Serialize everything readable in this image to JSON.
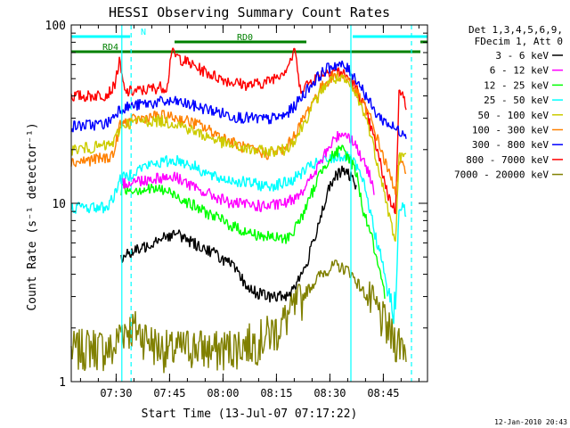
{
  "chart_data": {
    "type": "line",
    "title": "HESSI Observing Summary Count Rates",
    "xlabel": "Start Time (13-Jul-07 07:17:22)",
    "ylabel": "Count Rate (s⁻¹ detector⁻¹)",
    "x_unit": "minutes after 07:17:22",
    "xlim": [
      0,
      100
    ],
    "ylim": [
      1,
      100
    ],
    "yscale": "log",
    "grid": false,
    "legend_position": "right",
    "x_ticks": [
      {
        "t": 12.6,
        "label": "07:30"
      },
      {
        "t": 27.6,
        "label": "07:45"
      },
      {
        "t": 42.6,
        "label": "08:00"
      },
      {
        "t": 57.6,
        "label": "08:15"
      },
      {
        "t": 72.6,
        "label": "08:30"
      },
      {
        "t": 87.6,
        "label": "08:45"
      }
    ],
    "y_ticks": [
      {
        "v": 1,
        "label": "1"
      },
      {
        "v": 10,
        "label": "10"
      },
      {
        "v": 100,
        "label": "100"
      }
    ],
    "legend_header": [
      "Det 1,3,4,5,6,9,",
      "FDecim 1, Att 0"
    ],
    "series": [
      {
        "name": "3 - 6 keV",
        "color": "#000000",
        "x": [
          14,
          20,
          25,
          30,
          35,
          40,
          45,
          50,
          55,
          60,
          62,
          64,
          66,
          68,
          70,
          72,
          74,
          76,
          78,
          80
        ],
        "y": [
          5,
          5.6,
          6.5,
          6.7,
          5.9,
          5.3,
          4.5,
          3.3,
          3,
          3,
          3.3,
          3.8,
          4.5,
          6.2,
          8.5,
          11.5,
          14,
          15.2,
          14.5,
          12.5
        ]
      },
      {
        "name": "6 - 12 keV",
        "color": "#ff00ff",
        "x": [
          14,
          20,
          25,
          30,
          35,
          40,
          45,
          50,
          55,
          60,
          62,
          64,
          66,
          68,
          70,
          72,
          74,
          76,
          78,
          80,
          82,
          84,
          85
        ],
        "y": [
          13,
          13.5,
          14,
          14,
          12,
          11,
          10,
          9.8,
          9.6,
          10,
          10.5,
          11.5,
          12.5,
          14.5,
          17,
          20,
          23,
          25,
          24,
          21,
          17,
          14,
          12
        ]
      },
      {
        "name": "12 - 25 keV",
        "color": "#00ff00",
        "x": [
          14,
          20,
          25,
          30,
          35,
          40,
          45,
          50,
          55,
          60,
          62,
          64,
          66,
          68,
          70,
          72,
          74,
          76,
          78,
          80,
          82,
          84,
          86,
          88
        ],
        "y": [
          12,
          12,
          12,
          11,
          9.5,
          8.5,
          7.5,
          6.8,
          6.5,
          6.3,
          6.8,
          8,
          9.5,
          12,
          15,
          17.5,
          19,
          20,
          18,
          15,
          9,
          7,
          4.5,
          3
        ]
      },
      {
        "name": "25 - 50 keV",
        "color": "#00ffff",
        "x": [
          0,
          5,
          10,
          12,
          13.5,
          15,
          20,
          25,
          30,
          35,
          40,
          45,
          50,
          55,
          60,
          62,
          64,
          66,
          68,
          70,
          72,
          74,
          76,
          78,
          80,
          82,
          84,
          85,
          87,
          89,
          91,
          92,
          93,
          94
        ],
        "y": [
          9.5,
          9.5,
          9.5,
          11,
          13.5,
          14,
          16,
          17,
          17.5,
          16,
          14,
          13.5,
          13,
          12.5,
          13,
          13.5,
          14.5,
          15.5,
          16.5,
          17,
          17.5,
          18,
          18.5,
          18,
          16,
          13,
          9,
          7,
          5,
          3,
          2.5,
          9.5,
          9.5,
          9
        ]
      },
      {
        "name": "50 - 100 keV",
        "color": "#cccc00",
        "x": [
          0,
          5,
          10,
          12,
          13.5,
          15,
          20,
          25,
          30,
          35,
          40,
          45,
          50,
          55,
          60,
          62,
          64,
          66,
          68,
          70,
          72,
          74,
          76,
          78,
          80,
          82,
          84,
          85,
          87,
          89,
          91,
          92,
          93,
          94
        ],
        "y": [
          20,
          20.5,
          21,
          22,
          26,
          28,
          29,
          29,
          28,
          25,
          23,
          21,
          20,
          19.5,
          20,
          22,
          25,
          30,
          36,
          42,
          48,
          50,
          49,
          46,
          40,
          33,
          25,
          20,
          14,
          9,
          6,
          18,
          18.5,
          18
        ]
      },
      {
        "name": "100 - 300 keV",
        "color": "#ff8000",
        "x": [
          0,
          5,
          10,
          12,
          13.5,
          15,
          20,
          25,
          30,
          35,
          40,
          45,
          50,
          55,
          60,
          62,
          64,
          66,
          68,
          70,
          72,
          74,
          76,
          78,
          80,
          82,
          84,
          85,
          87,
          89,
          91,
          92,
          93,
          94
        ],
        "y": [
          17,
          17.5,
          18,
          19,
          27,
          28.5,
          30,
          31,
          30,
          28,
          25,
          22,
          20,
          19,
          20,
          23,
          27,
          32,
          38,
          44,
          49,
          52,
          52,
          49,
          42,
          36,
          30,
          26,
          20,
          15,
          12,
          16.5,
          16,
          16
        ]
      },
      {
        "name": "300 - 800 keV",
        "color": "#0000ff",
        "x": [
          0,
          5,
          10,
          12,
          13.5,
          15,
          20,
          25,
          30,
          35,
          40,
          45,
          50,
          55,
          60,
          62,
          64,
          66,
          68,
          70,
          72,
          74,
          76,
          78,
          80,
          82,
          84,
          85,
          87,
          89,
          91,
          92,
          93,
          94
        ],
        "y": [
          27,
          27.5,
          28,
          31,
          34,
          34.5,
          36,
          37,
          37,
          35,
          33,
          31,
          30,
          29.5,
          31,
          34,
          38,
          43,
          48,
          53,
          57,
          60,
          59,
          56,
          50,
          43,
          36,
          33,
          30,
          28,
          26,
          25.5,
          25.5,
          25
        ]
      },
      {
        "name": "800 - 7000 keV",
        "color": "#ff0000",
        "x": [
          0,
          5,
          10,
          12,
          13.5,
          15,
          20,
          25,
          27,
          28,
          30,
          35,
          40,
          45,
          50,
          55,
          60,
          62,
          63,
          64,
          66,
          68,
          70,
          72,
          74,
          76,
          78,
          80,
          82,
          84,
          85,
          87,
          89,
          91,
          92,
          93,
          94
        ],
        "y": [
          40,
          40,
          41,
          45,
          62,
          42,
          43,
          45,
          45,
          70,
          66,
          58,
          52,
          48,
          46,
          48,
          56,
          66,
          72,
          44,
          46,
          50,
          53,
          55,
          56,
          54,
          50,
          44,
          36,
          27,
          23,
          16,
          11,
          9,
          42,
          40,
          36
        ]
      },
      {
        "name": "7000 - 20000 keV",
        "color": "#808000",
        "x": [
          0,
          6,
          12,
          14,
          18,
          24,
          28,
          34,
          40,
          46,
          52,
          58,
          62,
          66,
          70,
          74,
          78,
          82,
          86,
          90,
          94
        ],
        "y": [
          1.5,
          1.6,
          1.5,
          2,
          2,
          1.6,
          1.5,
          1.6,
          1.5,
          1.6,
          1.7,
          2,
          2.5,
          3.2,
          4,
          4.5,
          4.2,
          3.2,
          2.5,
          1.8,
          1.6
        ]
      }
    ],
    "status_bars": [
      {
        "name": "N",
        "color": "#00ffff",
        "segments": [
          [
            0,
            16.5
          ],
          [
            79,
            100
          ]
        ]
      },
      {
        "name": "RD0",
        "color": "#008000",
        "segments": [
          [
            29,
            66
          ],
          [
            98,
            100
          ]
        ]
      },
      {
        "name": "RD4",
        "color": "#008000",
        "segments": [
          [
            0,
            98
          ]
        ]
      }
    ],
    "vertical_markers": [
      {
        "t": 14.2,
        "color": "#00ffff",
        "style": "solid"
      },
      {
        "t": 16.8,
        "color": "#00ffff",
        "style": "dashed"
      },
      {
        "t": 78.5,
        "color": "#00ffff",
        "style": "solid"
      },
      {
        "t": 95.5,
        "color": "#00ffff",
        "style": "dashed"
      }
    ],
    "footer_date": "12-Jan-2010 20:43"
  }
}
